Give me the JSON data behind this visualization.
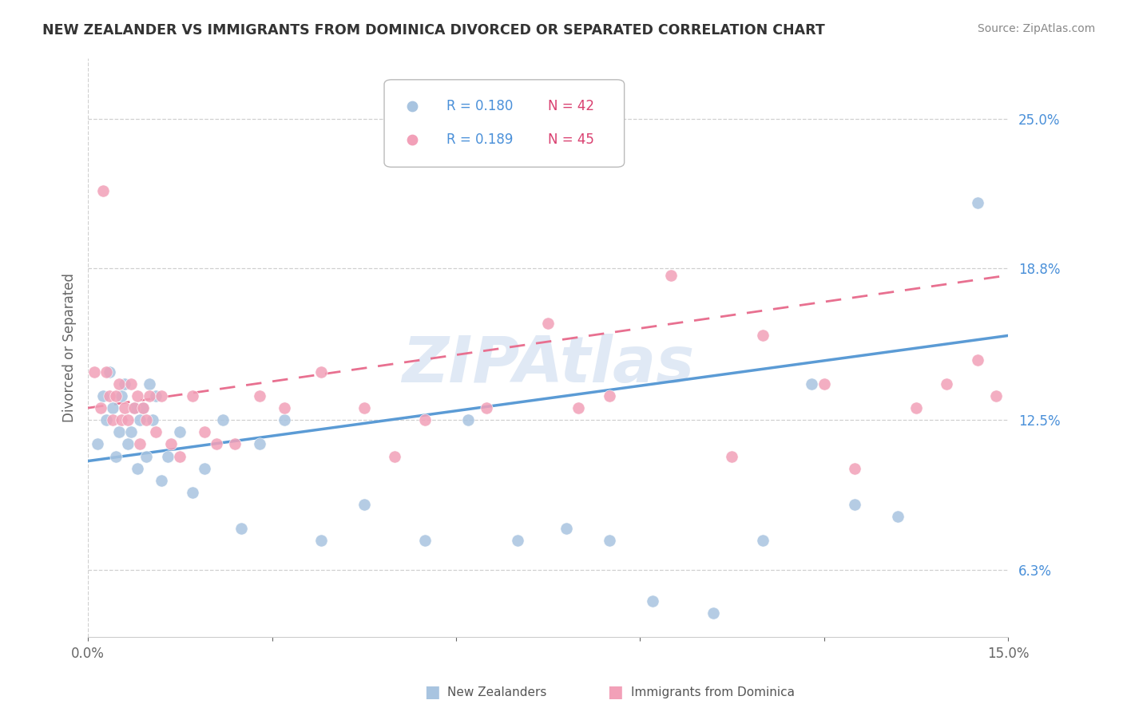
{
  "title": "NEW ZEALANDER VS IMMIGRANTS FROM DOMINICA DIVORCED OR SEPARATED CORRELATION CHART",
  "source": "Source: ZipAtlas.com",
  "ylabel": "Divorced or Separated",
  "xlim": [
    0.0,
    15.0
  ],
  "ylim": [
    3.5,
    27.5
  ],
  "xtick_pos": [
    0.0,
    3.0,
    6.0,
    9.0,
    12.0,
    15.0
  ],
  "xtick_labels": [
    "0.0%",
    "",
    "",
    "",
    "",
    "15.0%"
  ],
  "ytick_values": [
    6.3,
    12.5,
    18.8,
    25.0
  ],
  "ytick_labels": [
    "6.3%",
    "12.5%",
    "18.8%",
    "25.0%"
  ],
  "blue_color": "#a8c4e0",
  "pink_color": "#f2a0b8",
  "blue_line_color": "#5b9bd5",
  "pink_line_color": "#e87090",
  "blue_label": "New Zealanders",
  "pink_label": "Immigrants from Dominica",
  "blue_R": 0.18,
  "blue_N": 42,
  "pink_R": 0.189,
  "pink_N": 45,
  "watermark": "ZIPAtlas",
  "watermark_color": "#c8d8ed",
  "R_text_color": "#4a90d9",
  "N_text_color": "#d94070",
  "blue_x": [
    0.15,
    0.25,
    0.3,
    0.35,
    0.4,
    0.45,
    0.5,
    0.55,
    0.6,
    0.65,
    0.7,
    0.75,
    0.8,
    0.85,
    0.9,
    0.95,
    1.0,
    1.05,
    1.1,
    1.2,
    1.3,
    1.5,
    1.7,
    1.9,
    2.2,
    2.5,
    2.8,
    3.2,
    3.8,
    4.5,
    5.5,
    6.2,
    7.0,
    7.8,
    8.5,
    9.2,
    10.2,
    11.0,
    11.8,
    12.5,
    13.2,
    14.5
  ],
  "blue_y": [
    11.5,
    13.5,
    12.5,
    14.5,
    13.0,
    11.0,
    12.0,
    13.5,
    14.0,
    11.5,
    12.0,
    13.0,
    10.5,
    12.5,
    13.0,
    11.0,
    14.0,
    12.5,
    13.5,
    10.0,
    11.0,
    12.0,
    9.5,
    10.5,
    12.5,
    8.0,
    11.5,
    12.5,
    7.5,
    9.0,
    7.5,
    12.5,
    7.5,
    8.0,
    7.5,
    5.0,
    4.5,
    7.5,
    14.0,
    9.0,
    8.5,
    21.5
  ],
  "pink_x": [
    0.1,
    0.2,
    0.25,
    0.3,
    0.35,
    0.4,
    0.45,
    0.5,
    0.55,
    0.6,
    0.65,
    0.7,
    0.75,
    0.8,
    0.85,
    0.9,
    0.95,
    1.0,
    1.1,
    1.2,
    1.35,
    1.5,
    1.7,
    1.9,
    2.1,
    2.4,
    2.8,
    3.2,
    3.8,
    4.5,
    5.0,
    5.5,
    6.5,
    7.5,
    8.0,
    8.5,
    9.5,
    10.5,
    11.0,
    12.0,
    12.5,
    13.5,
    14.0,
    14.5,
    14.8
  ],
  "pink_y": [
    14.5,
    13.0,
    22.0,
    14.5,
    13.5,
    12.5,
    13.5,
    14.0,
    12.5,
    13.0,
    12.5,
    14.0,
    13.0,
    13.5,
    11.5,
    13.0,
    12.5,
    13.5,
    12.0,
    13.5,
    11.5,
    11.0,
    13.5,
    12.0,
    11.5,
    11.5,
    13.5,
    13.0,
    14.5,
    13.0,
    11.0,
    12.5,
    13.0,
    16.5,
    13.0,
    13.5,
    18.5,
    11.0,
    16.0,
    14.0,
    10.5,
    13.0,
    14.0,
    15.0,
    13.5
  ],
  "blue_trend_x": [
    0.0,
    15.0
  ],
  "blue_trend_y": [
    10.8,
    16.0
  ],
  "pink_trend_x": [
    0.0,
    15.0
  ],
  "pink_trend_y": [
    13.0,
    18.5
  ]
}
